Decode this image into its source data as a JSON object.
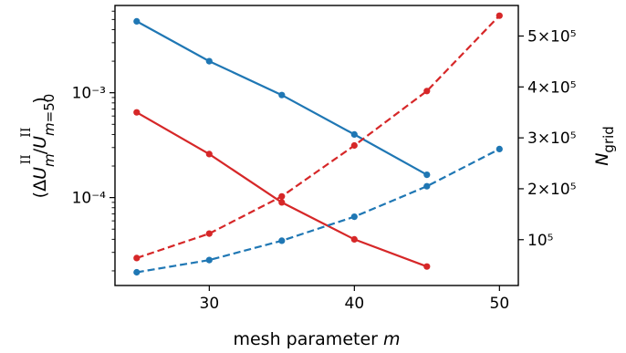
{
  "chart_data": {
    "type": "line",
    "xlabel": "mesh parameter m",
    "xlim": [
      23.5,
      51.3
    ],
    "xticks": [
      30,
      40,
      50
    ],
    "left_axis": {
      "label": "(ΔU_m^II / U_{m=50}^II)",
      "scale": "log",
      "ylim": [
        1.45e-05,
        0.0068
      ],
      "ticks": [
        {
          "value": 0.001,
          "label": "10⁻³"
        },
        {
          "value": 0.0001,
          "label": "10⁻⁴"
        }
      ]
    },
    "right_axis": {
      "label": "N_grid",
      "scale": "linear",
      "ylim": [
        10000,
        560000
      ],
      "ticks": [
        {
          "value": 100000,
          "label": "10⁵"
        },
        {
          "value": 200000,
          "label": "2×10⁵"
        },
        {
          "value": 300000,
          "label": "3×10⁵"
        },
        {
          "value": 400000,
          "label": "4×10⁵"
        },
        {
          "value": 500000,
          "label": "5×10⁵"
        }
      ]
    },
    "grid": false,
    "series": [
      {
        "axis": "left",
        "style": "solid",
        "color": "#1f77b4",
        "x": [
          25,
          30,
          35,
          40,
          45
        ],
        "y": [
          0.0048,
          0.002,
          0.00095,
          0.0004,
          0.000165
        ]
      },
      {
        "axis": "left",
        "style": "solid",
        "color": "#d62728",
        "x": [
          25,
          30,
          35,
          40,
          45
        ],
        "y": [
          0.00065,
          0.00026,
          9e-05,
          4e-05,
          2.2e-05
        ]
      },
      {
        "axis": "right",
        "style": "dashed",
        "color": "#d62728",
        "x": [
          25,
          30,
          35,
          40,
          45,
          50
        ],
        "y": [
          64000,
          112000,
          185000,
          285000,
          392000,
          540000
        ]
      },
      {
        "axis": "right",
        "style": "dashed",
        "color": "#1f77b4",
        "x": [
          25,
          30,
          35,
          40,
          45,
          50
        ],
        "y": [
          36000,
          60000,
          98000,
          145000,
          205000,
          278000
        ]
      }
    ]
  }
}
